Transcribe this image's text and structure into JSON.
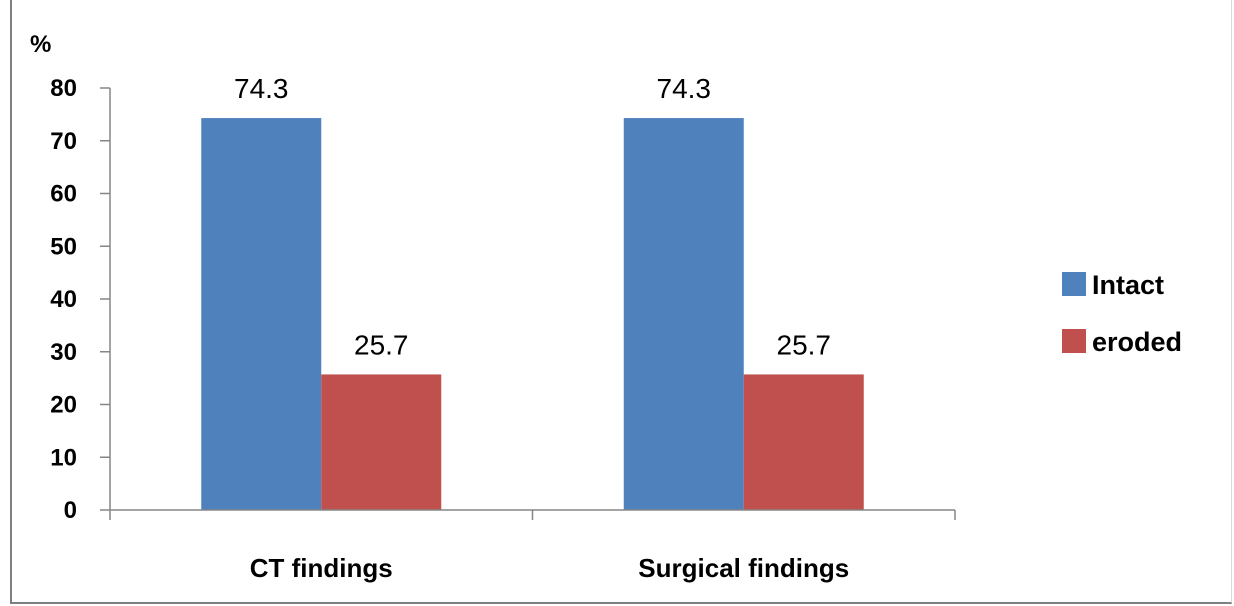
{
  "chart_data": {
    "type": "bar",
    "ylabel": "%",
    "categories": [
      "CT findings",
      "Surgical findings"
    ],
    "series": [
      {
        "name": "Intact",
        "values": [
          74.3,
          74.3
        ],
        "color": "#4F81BD"
      },
      {
        "name": "eroded",
        "values": [
          25.7,
          25.7
        ],
        "color": "#C0504D"
      }
    ],
    "ylim": [
      0,
      80
    ],
    "yticks": [
      0,
      10,
      20,
      30,
      40,
      50,
      60,
      70,
      80
    ],
    "grid": false,
    "legend_position": "right",
    "data_labels": true
  }
}
